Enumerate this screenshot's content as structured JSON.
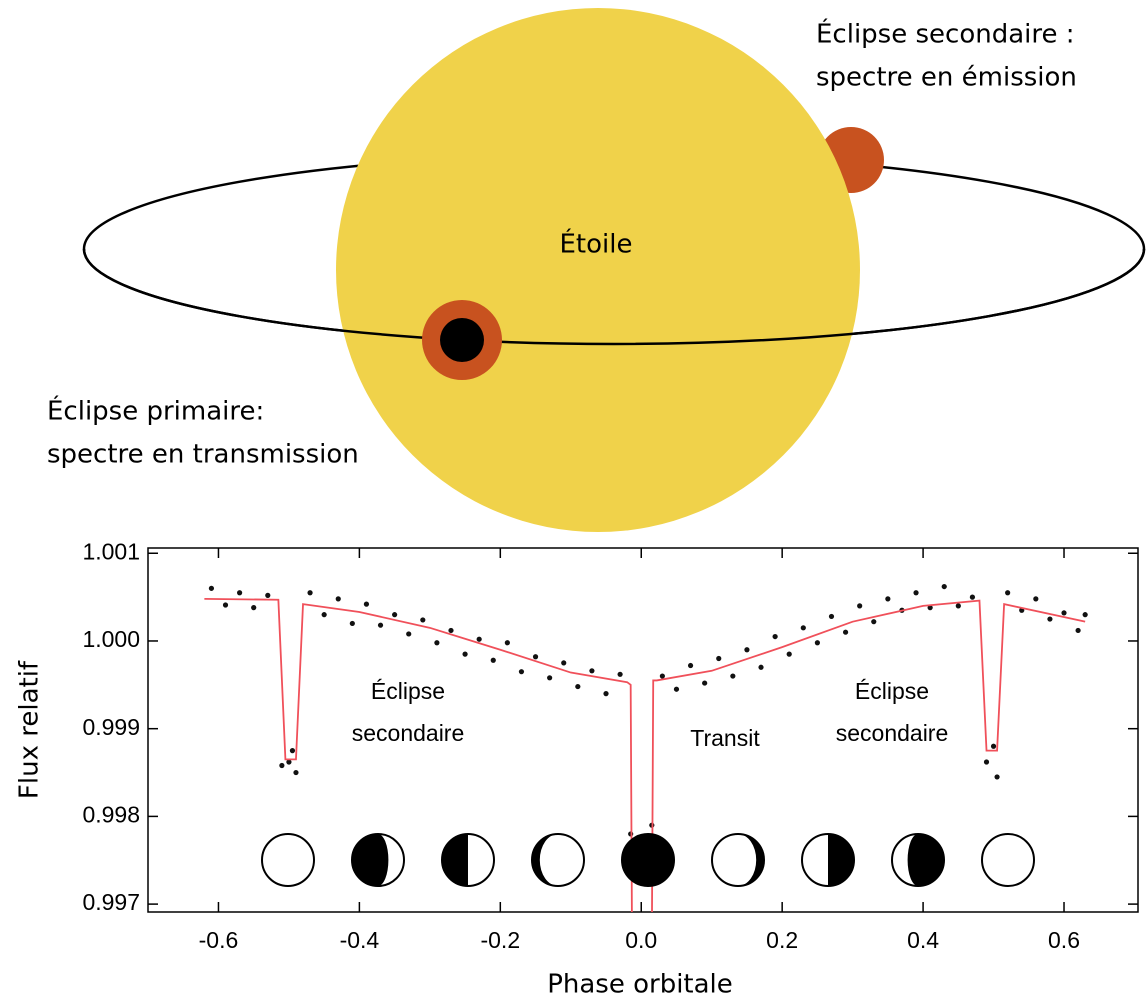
{
  "diagram": {
    "secondary_eclipse": [
      "Éclipse secondaire :",
      "spectre en émission"
    ],
    "star": "Étoile",
    "primary_eclipse": [
      "Éclipse primaire:",
      "spectre en transmission"
    ]
  },
  "chart_data": {
    "type": "scatter",
    "xlabel": "Phase orbitale",
    "ylabel": "Flux relatif",
    "xlim": [
      -0.7,
      0.705
    ],
    "ylim": [
      0.99691,
      1.00106
    ],
    "xticks": [
      -0.6,
      -0.4,
      -0.2,
      {
        "value": 0,
        "label": "0.0"
      },
      0.2,
      0.4,
      0.6
    ],
    "yticks": [
      0.997,
      0.998,
      0.999,
      {
        "value": 1,
        "label": "1.000"
      },
      1.001
    ],
    "annotations": [
      [
        "Éclipse",
        "secondaire"
      ],
      [
        "Transit"
      ],
      [
        "Éclipse",
        "secondaire"
      ]
    ],
    "series": [
      {
        "color": "#111111",
        "x": [
          -0.61,
          -0.59,
          -0.57,
          -0.55,
          -0.53,
          -0.51,
          -0.5,
          -0.495,
          -0.49,
          -0.47,
          -0.45,
          -0.43,
          -0.41,
          -0.39,
          -0.37,
          -0.35,
          -0.33,
          -0.31,
          -0.29,
          -0.27,
          -0.25,
          -0.23,
          -0.21,
          -0.19,
          -0.17,
          -0.15,
          -0.13,
          -0.11,
          -0.09,
          -0.07,
          -0.05,
          -0.03,
          -0.015,
          0.015,
          0.03,
          0.05,
          0.07,
          0.09,
          0.11,
          0.13,
          0.15,
          0.17,
          0.19,
          0.21,
          0.23,
          0.25,
          0.27,
          0.29,
          0.31,
          0.33,
          0.35,
          0.37,
          0.39,
          0.41,
          0.43,
          0.45,
          0.47,
          0.49,
          0.5,
          0.505,
          0.52,
          0.54,
          0.56,
          0.58,
          0.6,
          0.62,
          0.63
        ],
        "values": [
          1.0006,
          1.00041,
          1.00055,
          1.00038,
          1.00052,
          0.99858,
          0.99862,
          0.99875,
          0.9985,
          1.00055,
          1.0003,
          1.00048,
          1.0002,
          1.00042,
          1.00018,
          1.0003,
          1.00008,
          1.00024,
          0.99998,
          1.00012,
          0.99985,
          1.00002,
          0.99978,
          0.99998,
          0.99965,
          0.99982,
          0.99958,
          0.99975,
          0.99948,
          0.99966,
          0.9994,
          0.99962,
          0.9978,
          0.9979,
          0.9996,
          0.99945,
          0.99972,
          0.99952,
          0.9998,
          0.9996,
          0.9999,
          0.9997,
          1.00005,
          0.99985,
          1.00015,
          0.99998,
          1.00028,
          1.0001,
          1.0004,
          1.00022,
          1.00048,
          1.00035,
          1.00055,
          1.00038,
          1.00062,
          1.0004,
          1.0005,
          0.99862,
          0.9988,
          0.99845,
          1.00055,
          1.00035,
          1.00048,
          1.00025,
          1.00032,
          1.00012,
          1.0003
        ]
      },
      {
        "type": "line",
        "color": "#f0505a",
        "x": [
          -0.62,
          -0.515,
          -0.505,
          -0.49,
          -0.48,
          -0.4,
          -0.3,
          -0.2,
          -0.1,
          -0.02,
          -0.015,
          -0.013,
          0.015,
          0.017,
          0.022,
          0.1,
          0.2,
          0.3,
          0.4,
          0.48,
          0.49,
          0.505,
          0.515,
          0.63
        ],
        "values": [
          1.00048,
          1.00047,
          0.99865,
          0.99865,
          1.00042,
          1.00033,
          1.00015,
          0.9999,
          0.99964,
          0.99953,
          0.9995,
          0.9965,
          0.9965,
          0.99955,
          0.99955,
          0.99966,
          0.99993,
          1.00022,
          1.0004,
          1.00046,
          0.99875,
          0.99875,
          1.00042,
          1.00022
        ]
      }
    ]
  }
}
